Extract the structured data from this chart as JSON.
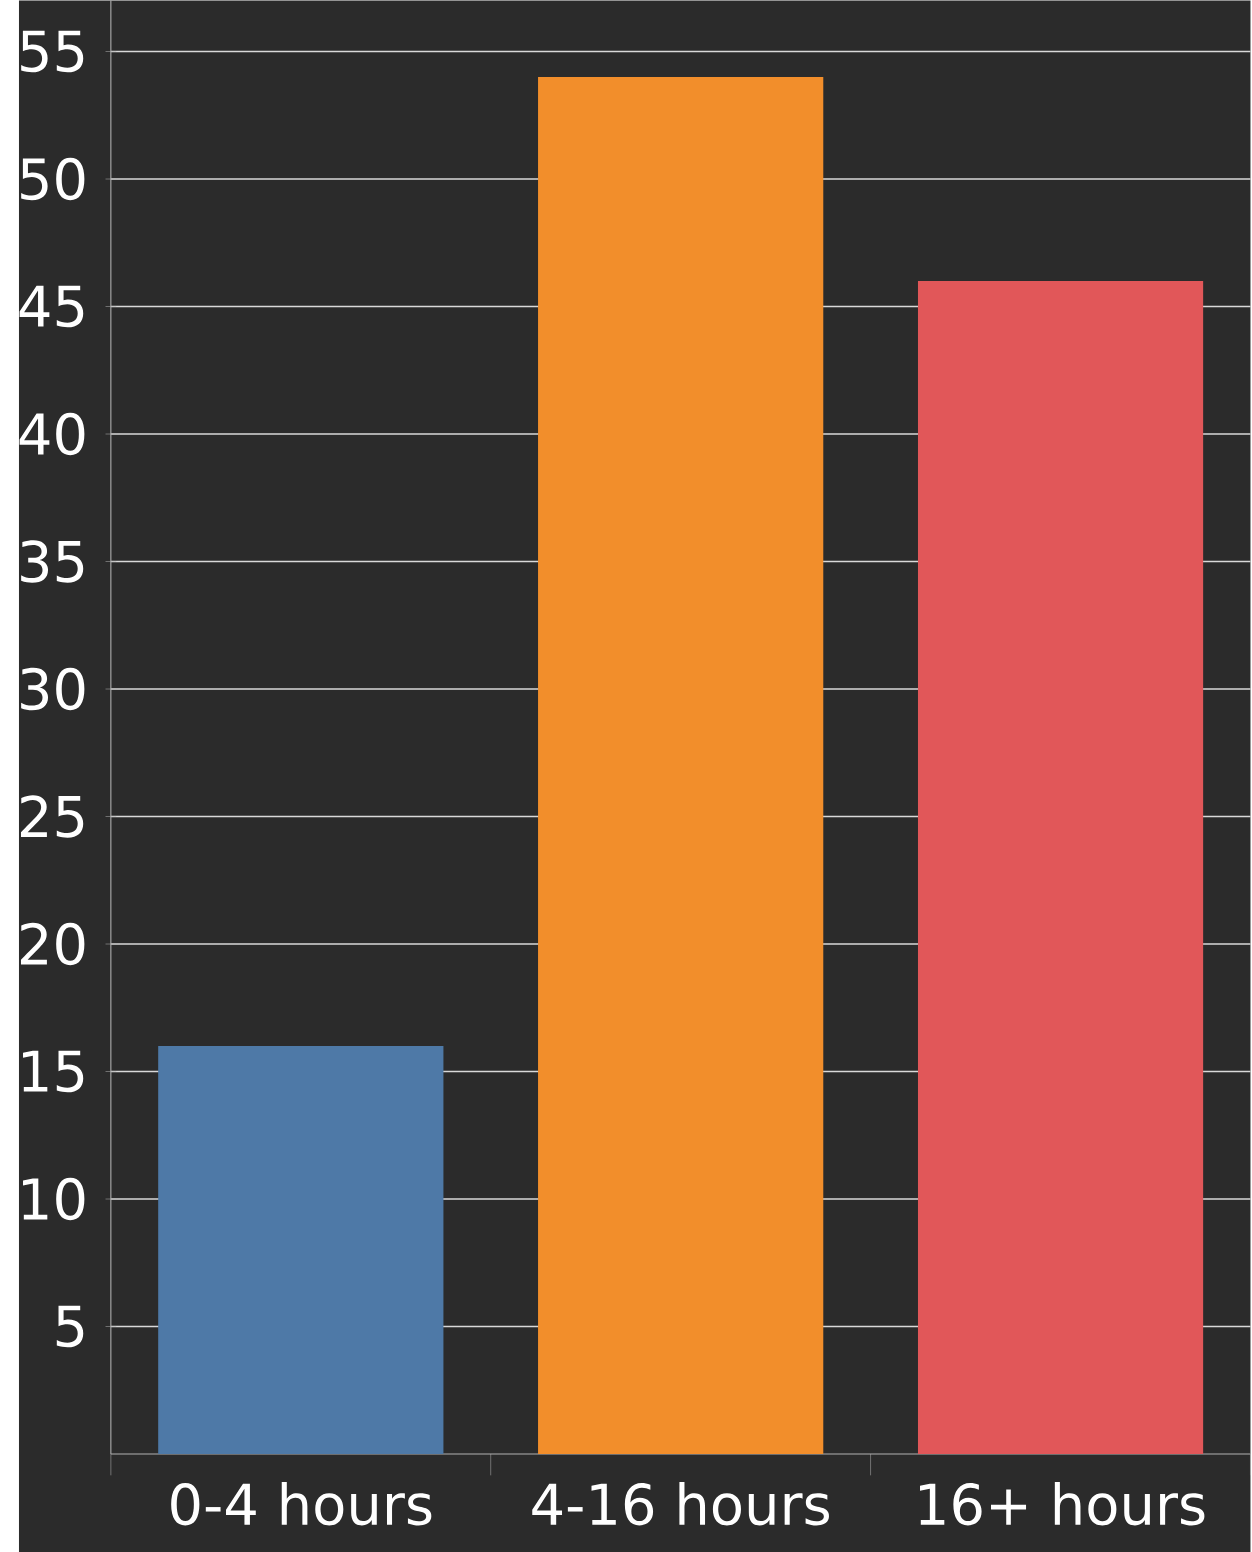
{
  "chart_data": {
    "type": "bar",
    "categories": [
      "0-4 hours",
      "4-16 hours",
      "16+ hours"
    ],
    "values": [
      16,
      54,
      46
    ],
    "colors": [
      "#4e79a7",
      "#f28e2b",
      "#e15759"
    ],
    "ylim": [
      0,
      57
    ],
    "yticks": [
      5,
      10,
      15,
      20,
      25,
      30,
      35,
      40,
      45,
      50,
      55
    ],
    "grid": "y"
  }
}
